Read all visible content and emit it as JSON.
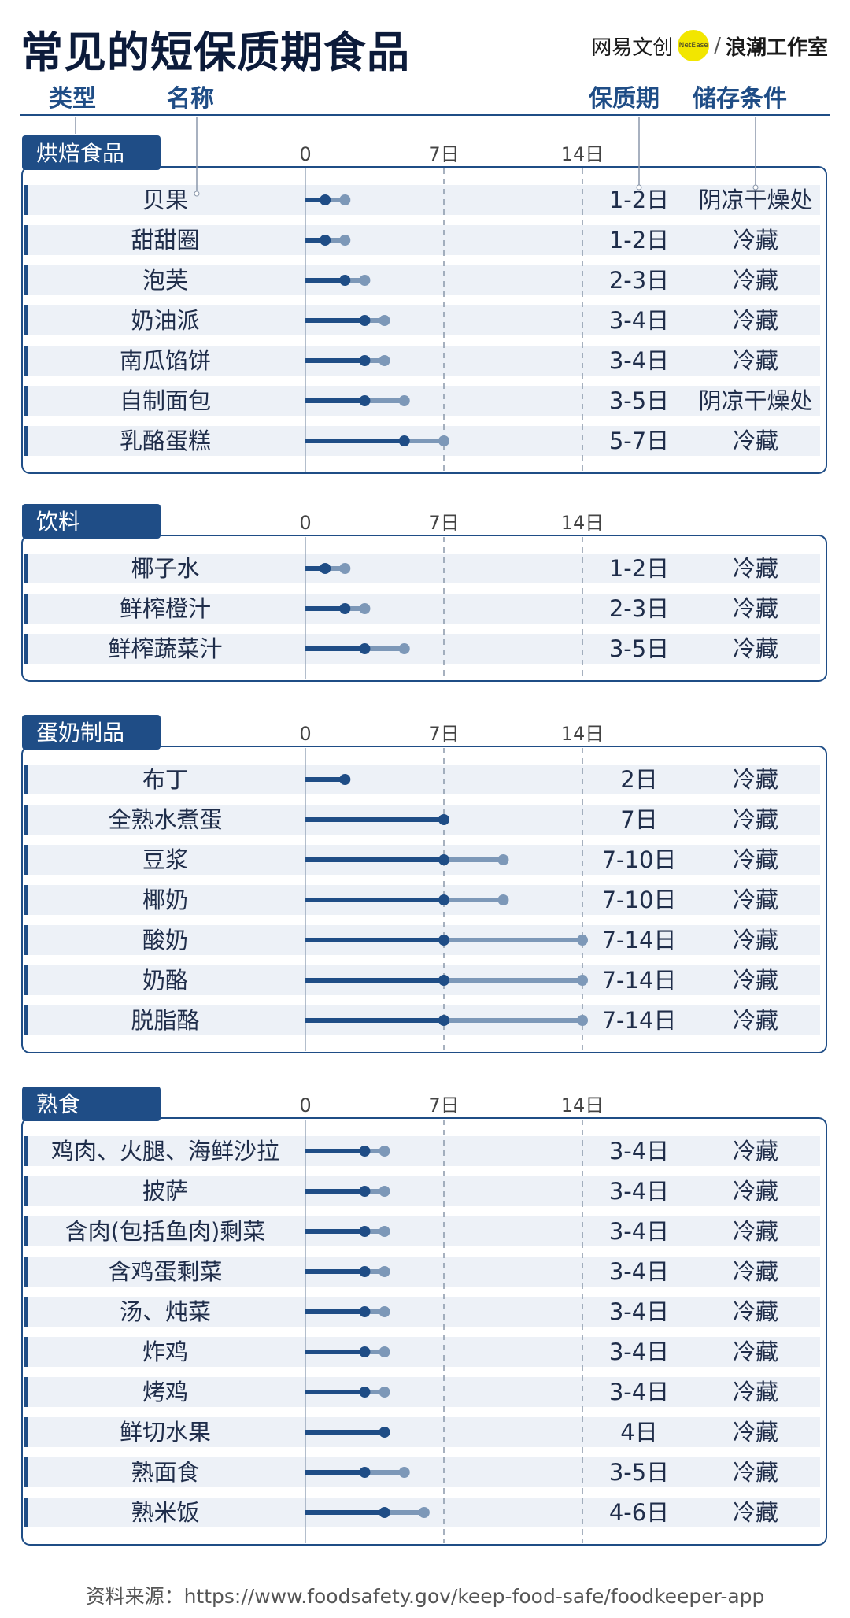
{
  "title": "常见的短保质期食品",
  "brand": {
    "logo": "网易文创",
    "badge": "NetEase",
    "separator": "/",
    "studio": "浪潮工作室"
  },
  "column_headers": {
    "type": "类型",
    "name": "名称",
    "shelf_life": "保质期",
    "storage": "储存条件"
  },
  "source": "资料来源：https://www.foodsafety.gov/keep-food-safe/foodkeeper-app",
  "colors": {
    "min_bar": "#1f4d86",
    "max_bar": "#7d98b8",
    "panel_border": "#1f4d86",
    "row_band": "#edf1f7",
    "tab": "#1f4d86"
  },
  "chart_data": {
    "type": "dumbbell",
    "x_unit": "日",
    "xlim": [
      0,
      14
    ],
    "ticks": [
      {
        "value": 0,
        "label": "0"
      },
      {
        "value": 7,
        "label": "7日"
      },
      {
        "value": 14,
        "label": "14日"
      }
    ],
    "groups": [
      {
        "category": "烘焙食品",
        "items": [
          {
            "name": "贝果",
            "min": 1,
            "max": 2,
            "label": "1-2日",
            "storage": "阴凉干燥处"
          },
          {
            "name": "甜甜圈",
            "min": 1,
            "max": 2,
            "label": "1-2日",
            "storage": "冷藏"
          },
          {
            "name": "泡芙",
            "min": 2,
            "max": 3,
            "label": "2-3日",
            "storage": "冷藏"
          },
          {
            "name": "奶油派",
            "min": 3,
            "max": 4,
            "label": "3-4日",
            "storage": "冷藏"
          },
          {
            "name": "南瓜馅饼",
            "min": 3,
            "max": 4,
            "label": "3-4日",
            "storage": "冷藏"
          },
          {
            "name": "自制面包",
            "min": 3,
            "max": 5,
            "label": "3-5日",
            "storage": "阴凉干燥处"
          },
          {
            "name": "乳酪蛋糕",
            "min": 5,
            "max": 7,
            "label": "5-7日",
            "storage": "冷藏"
          }
        ]
      },
      {
        "category": "饮料",
        "items": [
          {
            "name": "椰子水",
            "min": 1,
            "max": 2,
            "label": "1-2日",
            "storage": "冷藏"
          },
          {
            "name": "鲜榨橙汁",
            "min": 2,
            "max": 3,
            "label": "2-3日",
            "storage": "冷藏"
          },
          {
            "name": "鲜榨蔬菜汁",
            "min": 3,
            "max": 5,
            "label": "3-5日",
            "storage": "冷藏"
          }
        ]
      },
      {
        "category": "蛋奶制品",
        "items": [
          {
            "name": "布丁",
            "min": 2,
            "max": 2,
            "label": "2日",
            "storage": "冷藏"
          },
          {
            "name": "全熟水煮蛋",
            "min": 7,
            "max": 7,
            "label": "7日",
            "storage": "冷藏"
          },
          {
            "name": "豆浆",
            "min": 7,
            "max": 10,
            "label": "7-10日",
            "storage": "冷藏"
          },
          {
            "name": "椰奶",
            "min": 7,
            "max": 10,
            "label": "7-10日",
            "storage": "冷藏"
          },
          {
            "name": "酸奶",
            "min": 7,
            "max": 14,
            "label": "7-14日",
            "storage": "冷藏"
          },
          {
            "name": "奶酪",
            "min": 7,
            "max": 14,
            "label": "7-14日",
            "storage": "冷藏"
          },
          {
            "name": "脱脂酪",
            "min": 7,
            "max": 14,
            "label": "7-14日",
            "storage": "冷藏"
          }
        ]
      },
      {
        "category": "熟食",
        "items": [
          {
            "name": "鸡肉、火腿、海鲜沙拉",
            "min": 3,
            "max": 4,
            "label": "3-4日",
            "storage": "冷藏"
          },
          {
            "name": "披萨",
            "min": 3,
            "max": 4,
            "label": "3-4日",
            "storage": "冷藏"
          },
          {
            "name": "含肉(包括鱼肉)剩菜",
            "min": 3,
            "max": 4,
            "label": "3-4日",
            "storage": "冷藏"
          },
          {
            "name": "含鸡蛋剩菜",
            "min": 3,
            "max": 4,
            "label": "3-4日",
            "storage": "冷藏"
          },
          {
            "name": "汤、炖菜",
            "min": 3,
            "max": 4,
            "label": "3-4日",
            "storage": "冷藏"
          },
          {
            "name": "炸鸡",
            "min": 3,
            "max": 4,
            "label": "3-4日",
            "storage": "冷藏"
          },
          {
            "name": "烤鸡",
            "min": 3,
            "max": 4,
            "label": "3-4日",
            "storage": "冷藏"
          },
          {
            "name": "鲜切水果",
            "min": 4,
            "max": 4,
            "label": "4日",
            "storage": "冷藏"
          },
          {
            "name": "熟面食",
            "min": 3,
            "max": 5,
            "label": "3-5日",
            "storage": "冷藏"
          },
          {
            "name": "熟米饭",
            "min": 4,
            "max": 6,
            "label": "4-6日",
            "storage": "冷藏"
          }
        ]
      }
    ]
  }
}
